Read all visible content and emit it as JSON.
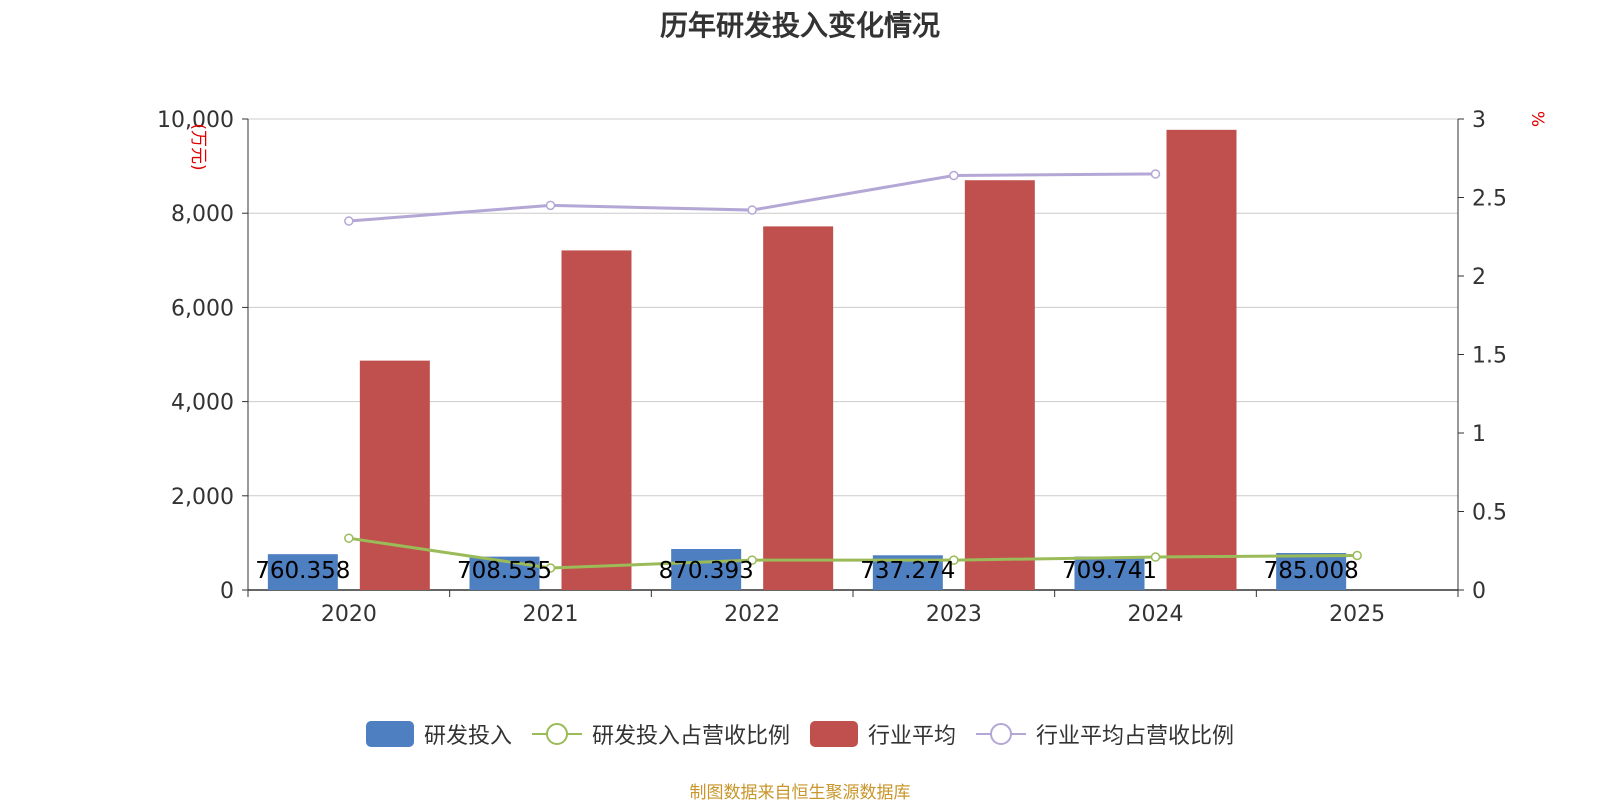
{
  "chart_data": {
    "type": "bar",
    "title": "历年研发投入变化情况",
    "categories": [
      "2020",
      "2021",
      "2022",
      "2023",
      "2024",
      "2025"
    ],
    "y_left": {
      "unit_label": "(万元)",
      "ylim": [
        0,
        10000
      ],
      "ticks": [
        "0",
        "2,000",
        "4,000",
        "6,000",
        "8,000",
        "10,000"
      ]
    },
    "y_right": {
      "unit_label": "%",
      "ylim": [
        0,
        3
      ],
      "ticks": [
        "0",
        "0.5",
        "1",
        "1.5",
        "2",
        "2.5",
        "3"
      ]
    },
    "series": [
      {
        "name": "研发投入",
        "kind": "bar",
        "axis": "left",
        "color": "#4e7fc1",
        "values": [
          760.358,
          708.535,
          870.393,
          737.274,
          709.741,
          785.008
        ],
        "labels": [
          "760.358",
          "708.535",
          "870.393",
          "737.274",
          "709.741",
          "785.008"
        ]
      },
      {
        "name": "研发投入占营收比例",
        "kind": "line",
        "axis": "right",
        "color": "#9bbb59",
        "values": [
          0.33,
          0.14,
          0.19,
          0.19,
          0.21,
          0.22
        ]
      },
      {
        "name": "行业平均",
        "kind": "bar",
        "axis": "left",
        "color": "#c0504d",
        "values": [
          4870,
          7210,
          7720,
          8700,
          9770,
          null
        ]
      },
      {
        "name": "行业平均占营收比例",
        "kind": "line",
        "axis": "right",
        "color": "#b4a7d6",
        "values": [
          2.35,
          2.45,
          2.42,
          2.64,
          2.65,
          null
        ]
      }
    ],
    "grid": true,
    "legend_position": "bottom"
  },
  "source_text": "制图数据来自恒生聚源数据库"
}
